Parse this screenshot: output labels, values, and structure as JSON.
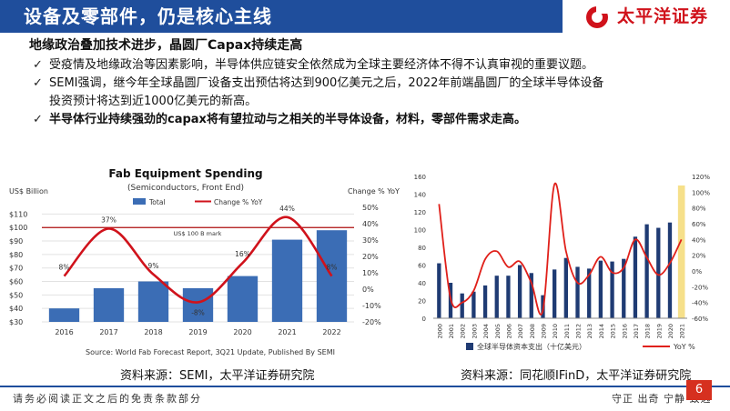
{
  "header": {
    "title": "设备及零部件，仍是核心主线",
    "logo_text": "太平洋证券",
    "accent_color": "#1f4e9c",
    "brand_color": "#d0121b"
  },
  "content": {
    "subtitle": "地缘政治叠加技术进步，晶圆厂Capax持续走高",
    "bullets": [
      "受疫情及地缘政治等因素影响，半导体供应链安全依然成为全球主要经济体不得不认真审视的重要议题。",
      "SEMI强调，继今年全球晶圆厂设备支出预估将达到900亿美元之后，2022年前端晶圆厂的全球半导体设备",
      "投资预计将达到近1000亿美元的新高。",
      "半导体行业持续强劲的capax将有望拉动与之相关的半导体设备，材料，零部件需求走高。"
    ],
    "check_glyph": "✓"
  },
  "chart_data": [
    {
      "type": "bar",
      "title": "Fab Equipment Spending",
      "subtitle": "(Semiconductors, Front End)",
      "left_axis_label": "US$ Billion",
      "right_axis_label": "Change % YoY",
      "categories": [
        "2016",
        "2017",
        "2018",
        "2019",
        "2020",
        "2021",
        "2022"
      ],
      "series": [
        {
          "name": "Total",
          "kind": "bar",
          "color": "#3b6db5",
          "values": [
            40,
            55,
            60,
            55,
            64,
            91,
            98
          ]
        },
        {
          "name": "Change % YoY",
          "kind": "line",
          "color": "#d0121b",
          "values": [
            8,
            37,
            9,
            -8,
            16,
            44,
            8
          ]
        }
      ],
      "data_labels": [
        "8%",
        "37%",
        "9%",
        "-8%",
        "16%",
        "44%",
        "8%"
      ],
      "left_ticks": [
        "$30",
        "$40",
        "$50",
        "$60",
        "$70",
        "$80",
        "$90",
        "$100",
        "$110"
      ],
      "right_ticks": [
        "-20%",
        "-10%",
        "0%",
        "10%",
        "20%",
        "30%",
        "40%",
        "50%"
      ],
      "ylim": [
        30,
        115
      ],
      "y2lim": [
        -20,
        50
      ],
      "reference_value": 100,
      "reference_label": "US$ 100 B mark",
      "source": "Source: World Fab Forecast Report, 3Q21 Update, Published By SEMI"
    },
    {
      "type": "bar",
      "categories": [
        "2000",
        "2001",
        "2002",
        "2003",
        "2004",
        "2005",
        "2006",
        "2007",
        "2008",
        "2009",
        "2010",
        "2011",
        "2012",
        "2013",
        "2014",
        "2015",
        "2016",
        "2017",
        "2018",
        "2019",
        "2020",
        "2021"
      ],
      "series": [
        {
          "name": "全球半导体资本支出（十亿美元）",
          "kind": "bar",
          "color": "#1f3b73",
          "values": [
            62,
            40,
            28,
            30,
            37,
            48,
            48,
            60,
            51,
            26,
            55,
            68,
            58,
            56,
            65,
            64,
            67,
            92,
            106,
            102,
            108,
            0
          ]
        },
        {
          "name": "YoY %",
          "kind": "line",
          "color": "#e0201a",
          "values": [
            85,
            -35,
            -40,
            -25,
            15,
            25,
            5,
            12,
            -15,
            -50,
            110,
            25,
            -15,
            -5,
            18,
            -2,
            4,
            40,
            17,
            -5,
            10,
            40
          ]
        }
      ],
      "left_ticks": [
        "0",
        "20",
        "40",
        "60",
        "80",
        "100",
        "120",
        "140",
        "160"
      ],
      "right_ticks": [
        "-60%",
        "-40%",
        "-20%",
        "0%",
        "20%",
        "40%",
        "60%",
        "80%",
        "100%",
        "120%"
      ],
      "ylim": [
        0,
        160
      ],
      "y2lim": [
        -60,
        120
      ],
      "highlight_color": "#f6e08a"
    }
  ],
  "sources": {
    "left": "资料来源：SEMI，太平洋证券研究院",
    "right": "资料来源：同花顺IFinD，太平洋证券研究院"
  },
  "footer": {
    "disclaimer": "请务必阅读正文之后的免责条款部分",
    "motto": "守正 出奇 宁静 致远",
    "page": "6"
  }
}
